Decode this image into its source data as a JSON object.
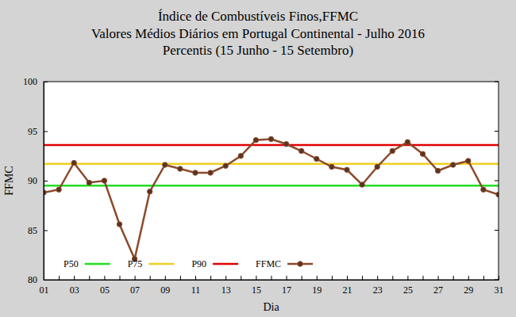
{
  "chart_data": {
    "type": "line",
    "title": "Índice de Combustíveis Finos,FFMC",
    "subtitle": [
      "Valores Médios Diários em Portugal Continental - Julho 2016",
      "Percentis (15 Junho - 15 Setembro)"
    ],
    "x_label": "Dia",
    "y_label": "FFMC",
    "categories": [
      "01",
      null,
      "03",
      null,
      "05",
      null,
      "07",
      null,
      "09",
      null,
      "11",
      null,
      "13",
      null,
      "15",
      null,
      "17",
      null,
      "19",
      null,
      "21",
      null,
      "23",
      null,
      "25",
      null,
      "27",
      null,
      "29",
      null,
      "31"
    ],
    "ylim": [
      80,
      100
    ],
    "yticks": [
      80,
      85,
      90,
      95,
      100
    ],
    "grid": false,
    "legend": "lower left",
    "series": [
      {
        "name": "P50",
        "color": "#22dd22",
        "line_style": "solid",
        "values": [
          89.5,
          89.5,
          89.5,
          89.5,
          89.5,
          89.5,
          89.5,
          89.5,
          89.5,
          89.5,
          89.5,
          89.5,
          89.5,
          89.5,
          89.5,
          89.5,
          89.5,
          89.5,
          89.5,
          89.5,
          89.5,
          89.5,
          89.5,
          89.5,
          89.5,
          89.5,
          89.5,
          89.5,
          89.5,
          89.5,
          89.5
        ]
      },
      {
        "name": "P75",
        "color": "#f0d020",
        "line_style": "solid",
        "values": [
          91.7,
          91.7,
          91.7,
          91.7,
          91.7,
          91.7,
          91.7,
          91.7,
          91.7,
          91.7,
          91.7,
          91.7,
          91.7,
          91.7,
          91.7,
          91.7,
          91.7,
          91.7,
          91.7,
          91.7,
          91.7,
          91.7,
          91.7,
          91.7,
          91.7,
          91.7,
          91.7,
          91.7,
          91.7,
          91.7,
          91.7
        ]
      },
      {
        "name": "P90",
        "color": "#e00000",
        "line_style": "solid",
        "values": [
          93.6,
          93.6,
          93.6,
          93.6,
          93.6,
          93.6,
          93.6,
          93.6,
          93.6,
          93.6,
          93.6,
          93.6,
          93.6,
          93.6,
          93.6,
          93.6,
          93.6,
          93.6,
          93.6,
          93.6,
          93.6,
          93.6,
          93.6,
          93.6,
          93.6,
          93.6,
          93.6,
          93.6,
          93.6,
          93.6,
          93.6
        ]
      },
      {
        "name": "FFMC",
        "color": "#8b4a2b",
        "line_style": "solid",
        "marker": "circle",
        "values": [
          88.8,
          89.1,
          91.8,
          89.8,
          90.0,
          85.6,
          82.1,
          88.9,
          91.6,
          91.2,
          90.8,
          90.8,
          91.5,
          92.5,
          94.1,
          94.2,
          93.7,
          93.0,
          92.2,
          91.4,
          91.1,
          89.6,
          91.4,
          93.0,
          93.9,
          92.7,
          91.0,
          91.6,
          92.0,
          89.1,
          88.6
        ]
      }
    ]
  }
}
